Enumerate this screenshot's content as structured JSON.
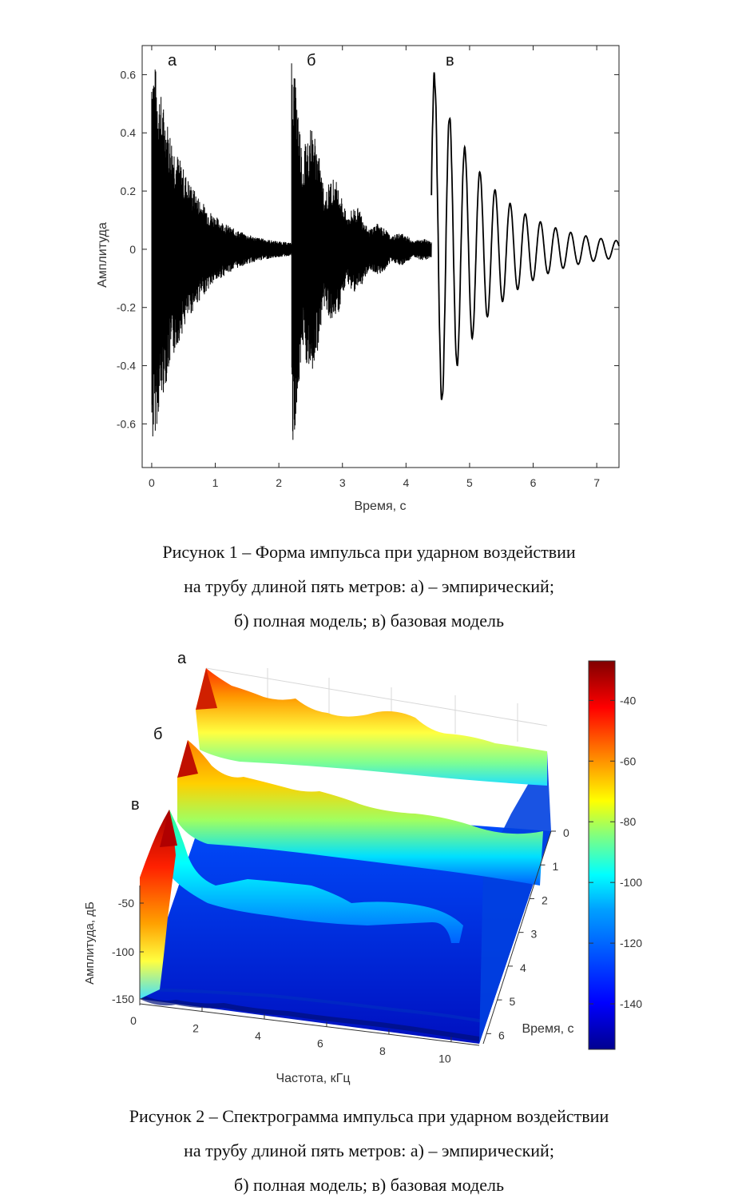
{
  "figure1": {
    "ylabel": "Амплитуда",
    "xlabel": "Время, с",
    "panel_labels": [
      "а",
      "б",
      "в"
    ],
    "caption_lines": [
      "Рисунок 1 – Форма импульса при ударном воздействии",
      "на трубу длиной пять метров: а) – эмпирический;",
      "б) полная модель; в) базовая модель"
    ]
  },
  "figure2": {
    "zlabel": "Амплитуда, дБ",
    "xlabel": "Частота, кГц",
    "ylabel": "Время, с",
    "panel_labels": [
      "а",
      "б",
      "в"
    ],
    "caption_lines": [
      "Рисунок 2 – Спектрограмма импульса при ударном воздействии",
      "на трубу длиной пять метров: а) – эмпирический;",
      "б) полная модель; в) базовая модель"
    ],
    "colormap": [
      "#00008f",
      "#0000ff",
      "#0080ff",
      "#00ffff",
      "#80ff80",
      "#ffff00",
      "#ff8000",
      "#ff0000",
      "#800000"
    ]
  },
  "chart_data": [
    {
      "type": "line",
      "xlabel": "Время, с",
      "ylabel": "Амплитуда",
      "xlim": [
        -0.15,
        7.35
      ],
      "ylim": [
        -0.75,
        0.7
      ],
      "xticks": [
        0,
        1,
        2,
        3,
        4,
        5,
        6,
        7
      ],
      "yticks": [
        -0.6,
        -0.4,
        -0.2,
        0,
        0.2,
        0.4,
        0.6
      ],
      "grid": false,
      "series": [
        {
          "label": "а",
          "start": 0.0,
          "end": 2.2,
          "peak_max": 0.69,
          "peak_min": -0.69,
          "kind": "dense high-frequency damped oscillation"
        },
        {
          "label": "б",
          "start": 2.2,
          "end": 4.4,
          "peak_max": 0.69,
          "peak_min": -0.73,
          "kind": "dense damped oscillation with beating"
        },
        {
          "label": "в",
          "start": 4.4,
          "end": 7.35,
          "peak_max": 0.68,
          "peak_min": -0.56,
          "kind": "low-frequency damped oscillation"
        }
      ]
    },
    {
      "type": "heatmap",
      "xlabel": "Частота, кГц",
      "ylabel": "Время, с",
      "zlabel": "Амплитуда, дБ",
      "xticks": [
        0,
        2,
        4,
        6,
        8,
        10
      ],
      "yticks": [
        0,
        1,
        2,
        3,
        4,
        5,
        6
      ],
      "zticks": [
        -50,
        -100,
        -150
      ],
      "colorbar_ticks": [
        -40,
        -60,
        -80,
        -100,
        -120,
        -140
      ],
      "colorbar_range": [
        -155,
        -27
      ],
      "series": [
        {
          "label": "а",
          "peak_db": -30,
          "plateau_db": -80
        },
        {
          "label": "б",
          "peak_db": -35,
          "plateau_db": -85
        },
        {
          "label": "в",
          "peak_db": -40,
          "plateau_db": -120
        }
      ]
    }
  ]
}
